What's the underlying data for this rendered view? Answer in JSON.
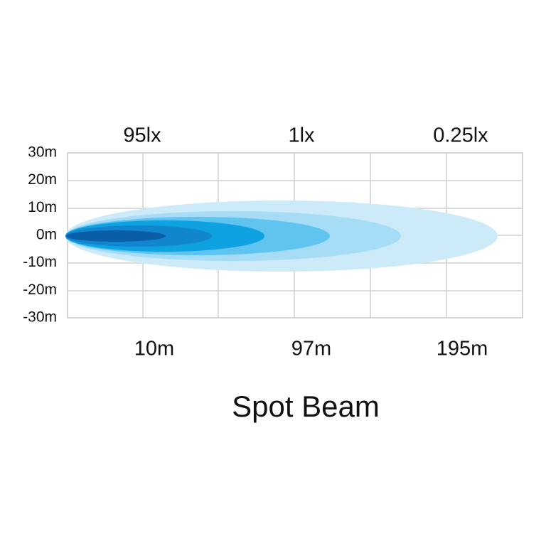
{
  "title": "Spot Beam",
  "y_axis_labels": [
    "30m",
    "20m",
    "10m",
    "0m",
    "-10m",
    "-20m",
    "-30m"
  ],
  "illuminance_labels": [
    "95lx",
    "1lx",
    "0.25lx"
  ],
  "distance_labels": [
    "10m",
    "97m",
    "195m"
  ]
}
